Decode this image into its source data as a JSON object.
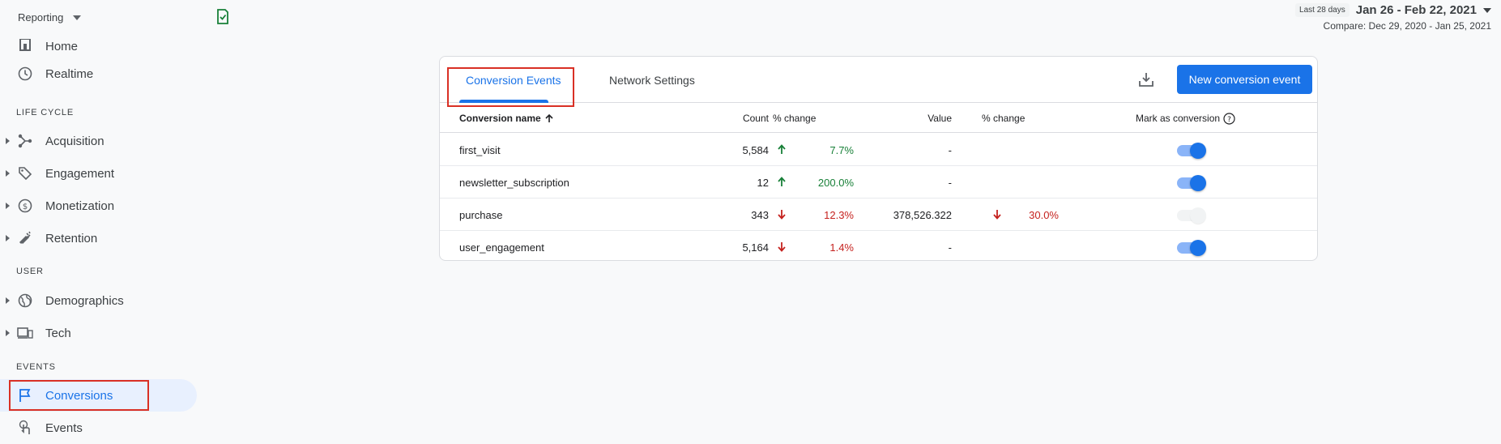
{
  "sidebar": {
    "reporting_label": "Reporting",
    "home": "Home",
    "realtime": "Realtime",
    "section_lifecycle": "LIFE CYCLE",
    "acquisition": "Acquisition",
    "engagement": "Engagement",
    "monetization": "Monetization",
    "retention": "Retention",
    "section_user": "USER",
    "demographics": "Demographics",
    "tech": "Tech",
    "section_events": "EVENTS",
    "conversions": "Conversions",
    "events": "Events"
  },
  "date": {
    "badge": "Last 28 days",
    "range": "Jan 26 - Feb 22, 2021",
    "compare": "Compare: Dec 29, 2020 - Jan 25, 2021"
  },
  "tabs": {
    "conversion_events": "Conversion Events",
    "network_settings": "Network Settings"
  },
  "buttons": {
    "new_conversion_event": "New conversion event"
  },
  "table": {
    "headers": {
      "name": "Conversion name",
      "count": "Count",
      "count_change": "% change",
      "value": "Value",
      "value_change": "% change",
      "mark": "Mark as conversion"
    },
    "rows": [
      {
        "name": "first_visit",
        "count": "5,584",
        "count_change": "7.7%",
        "count_dir": "up",
        "value": "-",
        "value_change": "",
        "enabled": true
      },
      {
        "name": "newsletter_subscription",
        "count": "12",
        "count_change": "200.0%",
        "count_dir": "up",
        "value": "-",
        "value_change": "",
        "enabled": true
      },
      {
        "name": "purchase",
        "count": "343",
        "count_change": "12.3%",
        "count_dir": "down",
        "value": "378,526.322",
        "value_change": "30.0%",
        "enabled": false
      },
      {
        "name": "user_engagement",
        "count": "5,164",
        "count_change": "1.4%",
        "count_dir": "down",
        "value": "-",
        "value_change": "",
        "enabled": true
      }
    ]
  },
  "colors": {
    "accent": "#1a73e8",
    "up": "#188038",
    "down": "#c5221f",
    "highlight_box": "#d93025"
  }
}
